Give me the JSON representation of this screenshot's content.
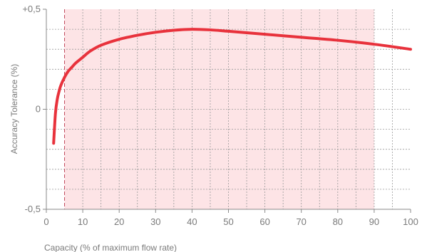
{
  "chart_data": {
    "type": "line",
    "title": "",
    "xlabel": "Capacity (% of maximum flow rate)",
    "ylabel": "Accuracy Tolerance (%)",
    "xlim": [
      0,
      100
    ],
    "ylim": [
      -0.5,
      0.5
    ],
    "x_ticks": [
      0,
      10,
      20,
      30,
      40,
      50,
      60,
      70,
      80,
      90,
      100
    ],
    "x_tick_labels": [
      "0",
      "10",
      "20",
      "30",
      "40",
      "50",
      "60",
      "70",
      "80",
      "90",
      "100"
    ],
    "y_ticks": [
      -0.5,
      0,
      0.5
    ],
    "y_tick_labels": [
      "-0,5",
      "0",
      "+0,5"
    ],
    "grid": true,
    "grid_style": "dashed",
    "shaded_region": {
      "x_start": 5,
      "x_end": 90,
      "color": "#fde4e6"
    },
    "reference_line": {
      "x": 5,
      "style": "dashed",
      "color": "#c0475a"
    },
    "series": [
      {
        "color": "#e8323c",
        "x": [
          2,
          2.5,
          3,
          3.5,
          4,
          5,
          6,
          7,
          8,
          10,
          12,
          15,
          20,
          25,
          30,
          35,
          40,
          45,
          50,
          60,
          70,
          80,
          90,
          100
        ],
        "y": [
          -0.17,
          -0.02,
          0.05,
          0.09,
          0.12,
          0.16,
          0.19,
          0.21,
          0.23,
          0.26,
          0.29,
          0.32,
          0.35,
          0.37,
          0.385,
          0.395,
          0.4,
          0.397,
          0.39,
          0.375,
          0.36,
          0.345,
          0.325,
          0.3
        ]
      }
    ]
  }
}
